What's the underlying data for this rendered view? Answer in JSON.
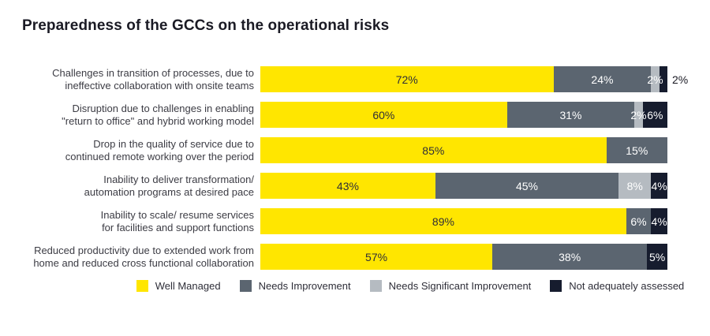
{
  "title": "Preparedness of the GCCs on the operational risks",
  "chart_data": {
    "type": "bar",
    "stacked": true,
    "orientation": "horizontal",
    "title": "Preparedness of the GCCs on the operational risks",
    "xlim": [
      0,
      100
    ],
    "value_suffix": "%",
    "grid": false,
    "legend_position": "bottom",
    "categories": [
      [
        "Challenges in transition of processes, due to",
        "ineffective collaboration with onsite teams"
      ],
      [
        "Disruption due to challenges in enabling",
        "\"return to office\" and hybrid working model"
      ],
      [
        "Drop in the quality of service due to",
        "continued remote working over the period"
      ],
      [
        "Inability to deliver transformation/",
        "automation programs at desired pace"
      ],
      [
        "Inability to scale/ resume services",
        "for facilities and support functions"
      ],
      [
        "Reduced productivity due to extended work from",
        "home and reduced cross functional collaboration"
      ]
    ],
    "series": [
      {
        "name": "Well Managed",
        "color": "#ffe600",
        "text_color": "#2e2e38",
        "values": [
          72,
          60,
          85,
          43,
          89,
          57
        ]
      },
      {
        "name": "Needs Improvement",
        "color": "#5b6570",
        "text_color": "#ffffff",
        "values": [
          24,
          31,
          15,
          45,
          6,
          38
        ]
      },
      {
        "name": "Needs Significant Improvement",
        "color": "#b5bbc1",
        "text_color": "#ffffff",
        "values": [
          2,
          2,
          0,
          8,
          0,
          0
        ]
      },
      {
        "name": "Not adequately assessed",
        "color": "#161c2e",
        "text_color": "#ffffff",
        "values": [
          2,
          6,
          0,
          4,
          4,
          5
        ]
      }
    ],
    "outside_labels": [
      {
        "row": 0,
        "series": 3
      }
    ]
  }
}
